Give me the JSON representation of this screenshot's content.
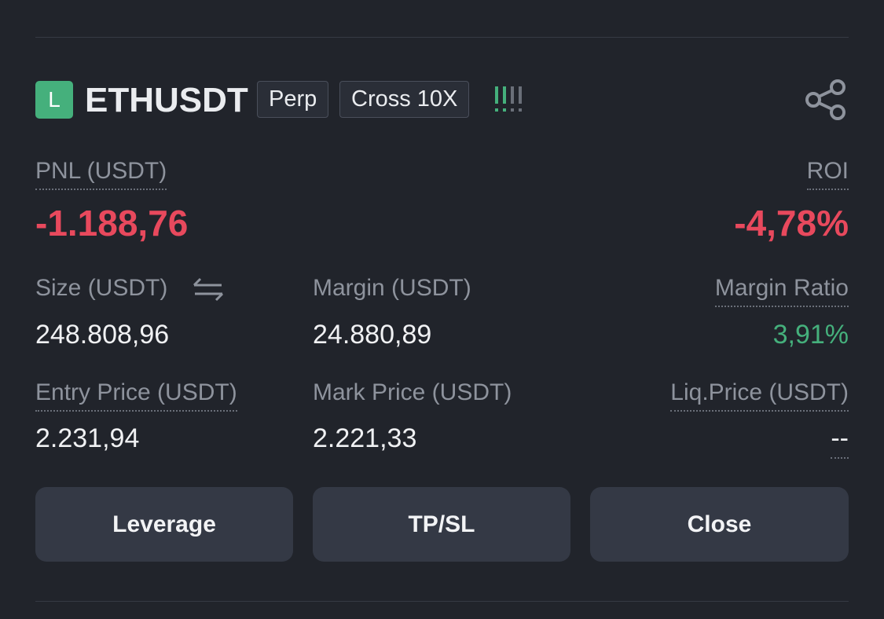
{
  "header": {
    "badge": "L",
    "symbol": "ETHUSDT",
    "tags": [
      "Perp",
      "Cross 10X"
    ]
  },
  "pnl": {
    "label": "PNL (USDT)",
    "value": "-1.188,76"
  },
  "roi": {
    "label": "ROI",
    "value": "-4,78%"
  },
  "fields": [
    {
      "label": "Size (USDT)",
      "value": "248.808,96"
    },
    {
      "label": "Margin (USDT)",
      "value": "24.880,89"
    },
    {
      "label": "Margin Ratio",
      "value": "3,91%"
    },
    {
      "label": "Entry Price (USDT)",
      "value": "2.231,94"
    },
    {
      "label": "Mark Price (USDT)",
      "value": "2.221,33"
    },
    {
      "label": "Liq.Price (USDT)",
      "value": "--"
    }
  ],
  "buttons": [
    "Leverage",
    "TP/SL",
    "Close"
  ]
}
